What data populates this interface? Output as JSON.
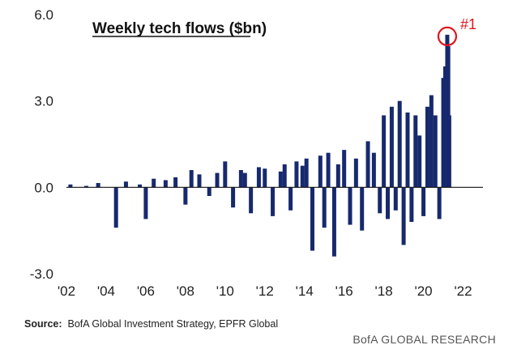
{
  "chart_data": {
    "type": "bar",
    "title": "Weekly tech flows ($bn)",
    "xlabel": "",
    "ylabel": "",
    "ylim": [
      -3.0,
      6.0
    ],
    "yticks": [
      "6.0",
      "3.0",
      "0.0",
      "-3.0"
    ],
    "xticks": [
      "'02",
      "'04",
      "'06",
      "'08",
      "'10",
      "'12",
      "'14",
      "'16",
      "'18",
      "'20",
      "'22"
    ],
    "xlim": [
      2002,
      2023
    ],
    "grid": false,
    "bar_color": "#17296e",
    "highlight": {
      "label": "#1",
      "color": "#e0161b"
    },
    "series": [
      {
        "x": [
          2002.2,
          2003.0,
          2003.6,
          2004.5,
          2005.0,
          2005.7,
          2006.0,
          2006.4,
          2007.0,
          2007.5,
          2008.0,
          2008.3,
          2008.7,
          2009.2,
          2009.6,
          2010.0,
          2010.4,
          2010.8,
          2011.0,
          2011.3,
          2011.7,
          2012.0,
          2012.4,
          2012.8,
          2013.0,
          2013.3,
          2013.6,
          2013.9,
          2014.1,
          2014.4,
          2014.8,
          2015.0,
          2015.2,
          2015.5,
          2015.7,
          2016.0,
          2016.3,
          2016.6,
          2016.9,
          2017.2,
          2017.5,
          2017.8,
          2018.0,
          2018.2,
          2018.4,
          2018.6,
          2018.8,
          2019.0,
          2019.2,
          2019.4,
          2019.6,
          2019.8,
          2020.0,
          2020.2,
          2020.4,
          2020.6,
          2020.8,
          2021.0,
          2021.1,
          2021.2,
          2021.25,
          2021.3
        ],
        "values": [
          0.1,
          0.05,
          0.15,
          -1.4,
          0.2,
          0.1,
          -1.1,
          0.3,
          0.25,
          0.35,
          -0.6,
          0.6,
          0.45,
          -0.3,
          0.5,
          0.9,
          -0.7,
          0.6,
          0.5,
          -0.9,
          0.7,
          0.65,
          -1.0,
          0.55,
          0.8,
          -0.8,
          0.9,
          0.75,
          1.0,
          -2.2,
          1.1,
          -1.4,
          1.2,
          -2.4,
          0.8,
          1.3,
          -1.3,
          1.0,
          -1.5,
          1.6,
          1.2,
          -0.9,
          2.5,
          -1.1,
          2.8,
          -0.8,
          3.0,
          -2.0,
          2.6,
          -1.2,
          2.5,
          1.8,
          -1.0,
          2.8,
          3.2,
          2.5,
          -1.1,
          3.8,
          4.2,
          5.3,
          4.9,
          2.5
        ]
      }
    ]
  },
  "footer": {
    "source_label": "Source:",
    "source_text": "BofA Global Investment Strategy, EPFR Global",
    "brand": "BofA GLOBAL RESEARCH"
  }
}
